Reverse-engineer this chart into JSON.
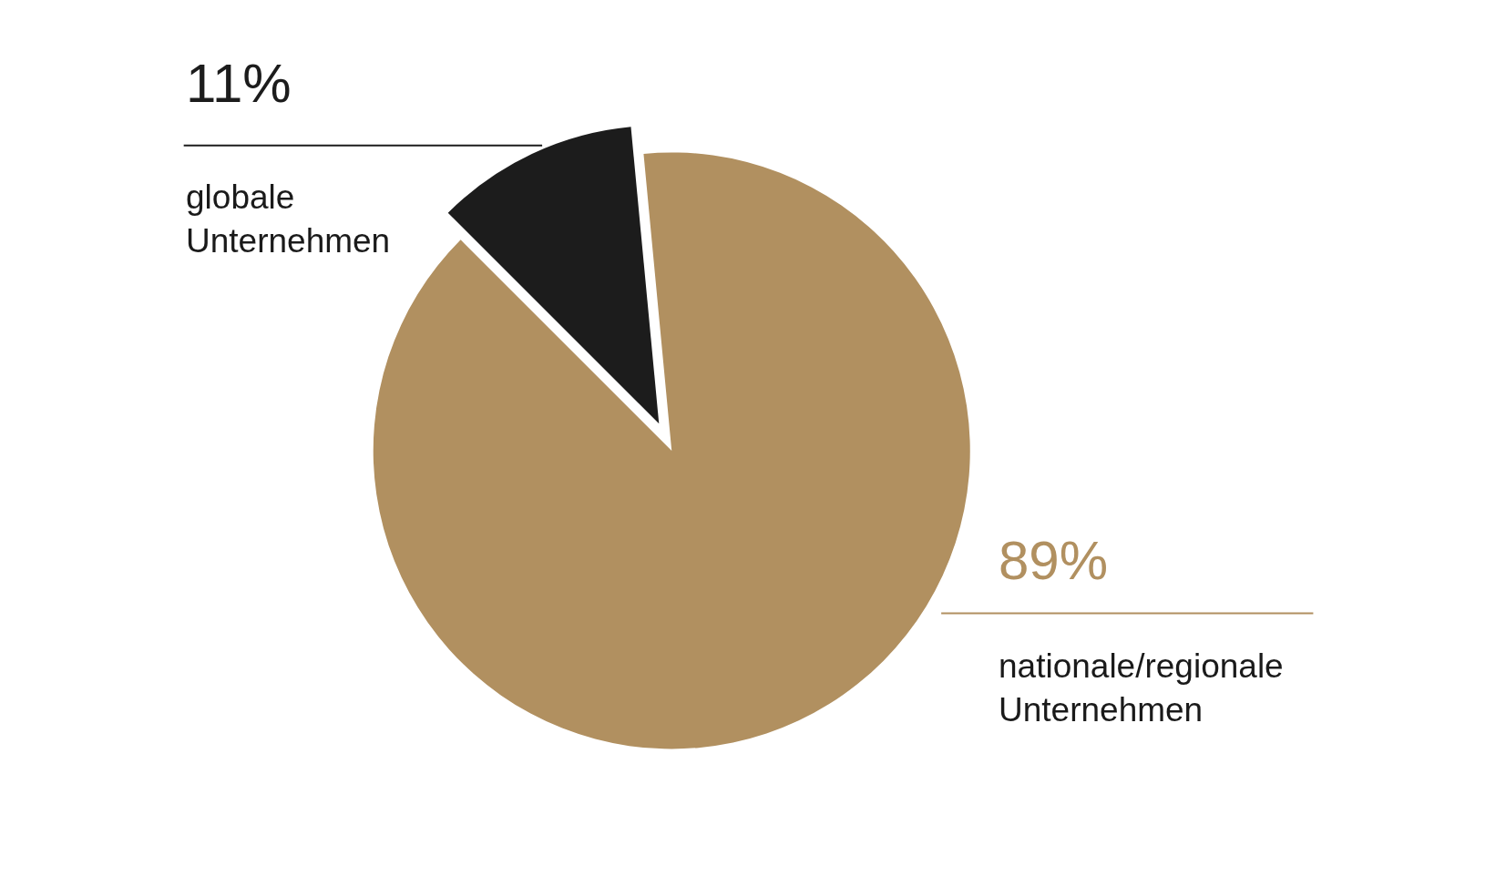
{
  "chart_data": {
    "type": "pie",
    "categories": [
      "globale\nUnternehmen",
      "nationale/regionale\nUnternehmen"
    ],
    "values": [
      11,
      89
    ],
    "value_labels": [
      "11%",
      "89%"
    ],
    "colors": [
      "#1c1c1c",
      "#b19060"
    ],
    "legend": false
  }
}
